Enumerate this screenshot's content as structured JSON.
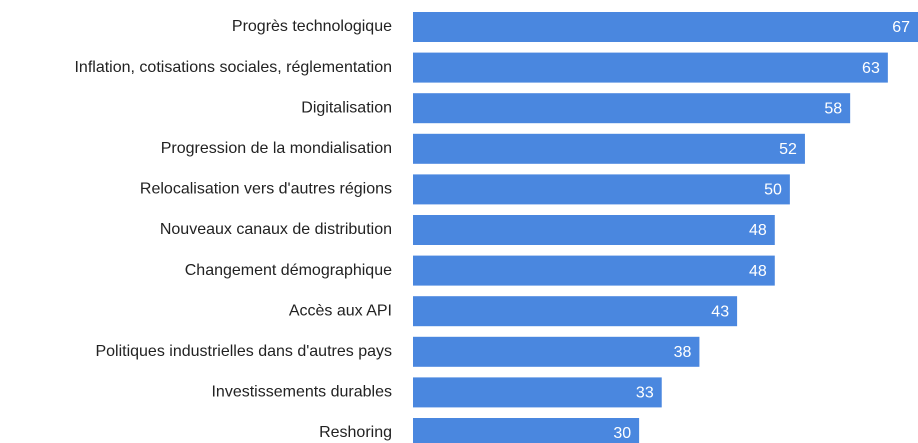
{
  "chart_data": {
    "type": "bar",
    "orientation": "horizontal",
    "categories": [
      "Progrès technologique",
      "Inflation, cotisations sociales, réglementation",
      "Digitalisation",
      "Progression de la mondialisation",
      "Relocalisation vers d'autres régions",
      "Nouveaux canaux de distribution",
      "Changement démographique",
      "Accès aux API",
      "Politiques industrielles dans d'autres pays",
      "Investissements durables",
      "Reshoring"
    ],
    "values": [
      67,
      63,
      58,
      52,
      50,
      48,
      48,
      43,
      38,
      33,
      30
    ],
    "color": "#4a87df"
  }
}
